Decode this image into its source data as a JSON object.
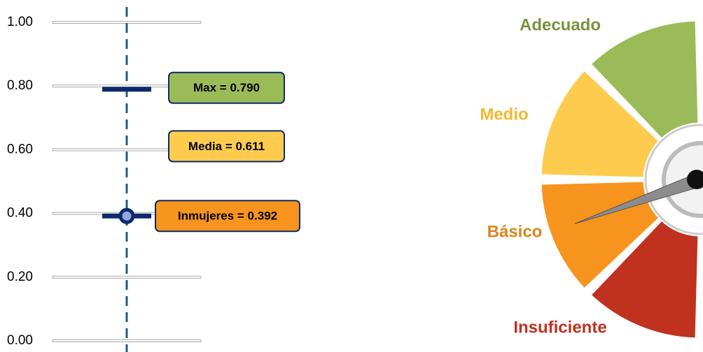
{
  "chart_data": [
    {
      "type": "dot",
      "categories": [
        "Max",
        "Media",
        "Inmujeres"
      ],
      "values": [
        0.79,
        0.611,
        0.392
      ],
      "value_labels": [
        "Max = 0.790",
        "Media = 0.611",
        "Inmujeres = 0.392"
      ],
      "colors": [
        "#9bbb59",
        "#fdcb4e",
        "#f7941d"
      ],
      "markers": [
        "bar",
        "none",
        "bar-circle"
      ],
      "ylim": [
        0,
        1
      ],
      "yticks": [
        {
          "value": 0,
          "label": "0.00"
        },
        {
          "value": 0.2,
          "label": "0.20"
        },
        {
          "value": 0.4,
          "label": "0.40"
        },
        {
          "value": 0.6,
          "label": "0.60"
        },
        {
          "value": 0.8,
          "label": "0.80"
        },
        {
          "value": 1,
          "label": "1.00"
        }
      ],
      "grid": true
    },
    {
      "type": "gauge",
      "categories": [
        "Insuficiente",
        "Básico",
        "Medio",
        "Adecuado"
      ],
      "colors": [
        "#c0311f",
        "#f7941d",
        "#fdcb4e",
        "#9bbb59"
      ],
      "label_colors": [
        "#c0311f",
        "#d9861c",
        "#f5b82e",
        "#77933c"
      ]
    }
  ]
}
